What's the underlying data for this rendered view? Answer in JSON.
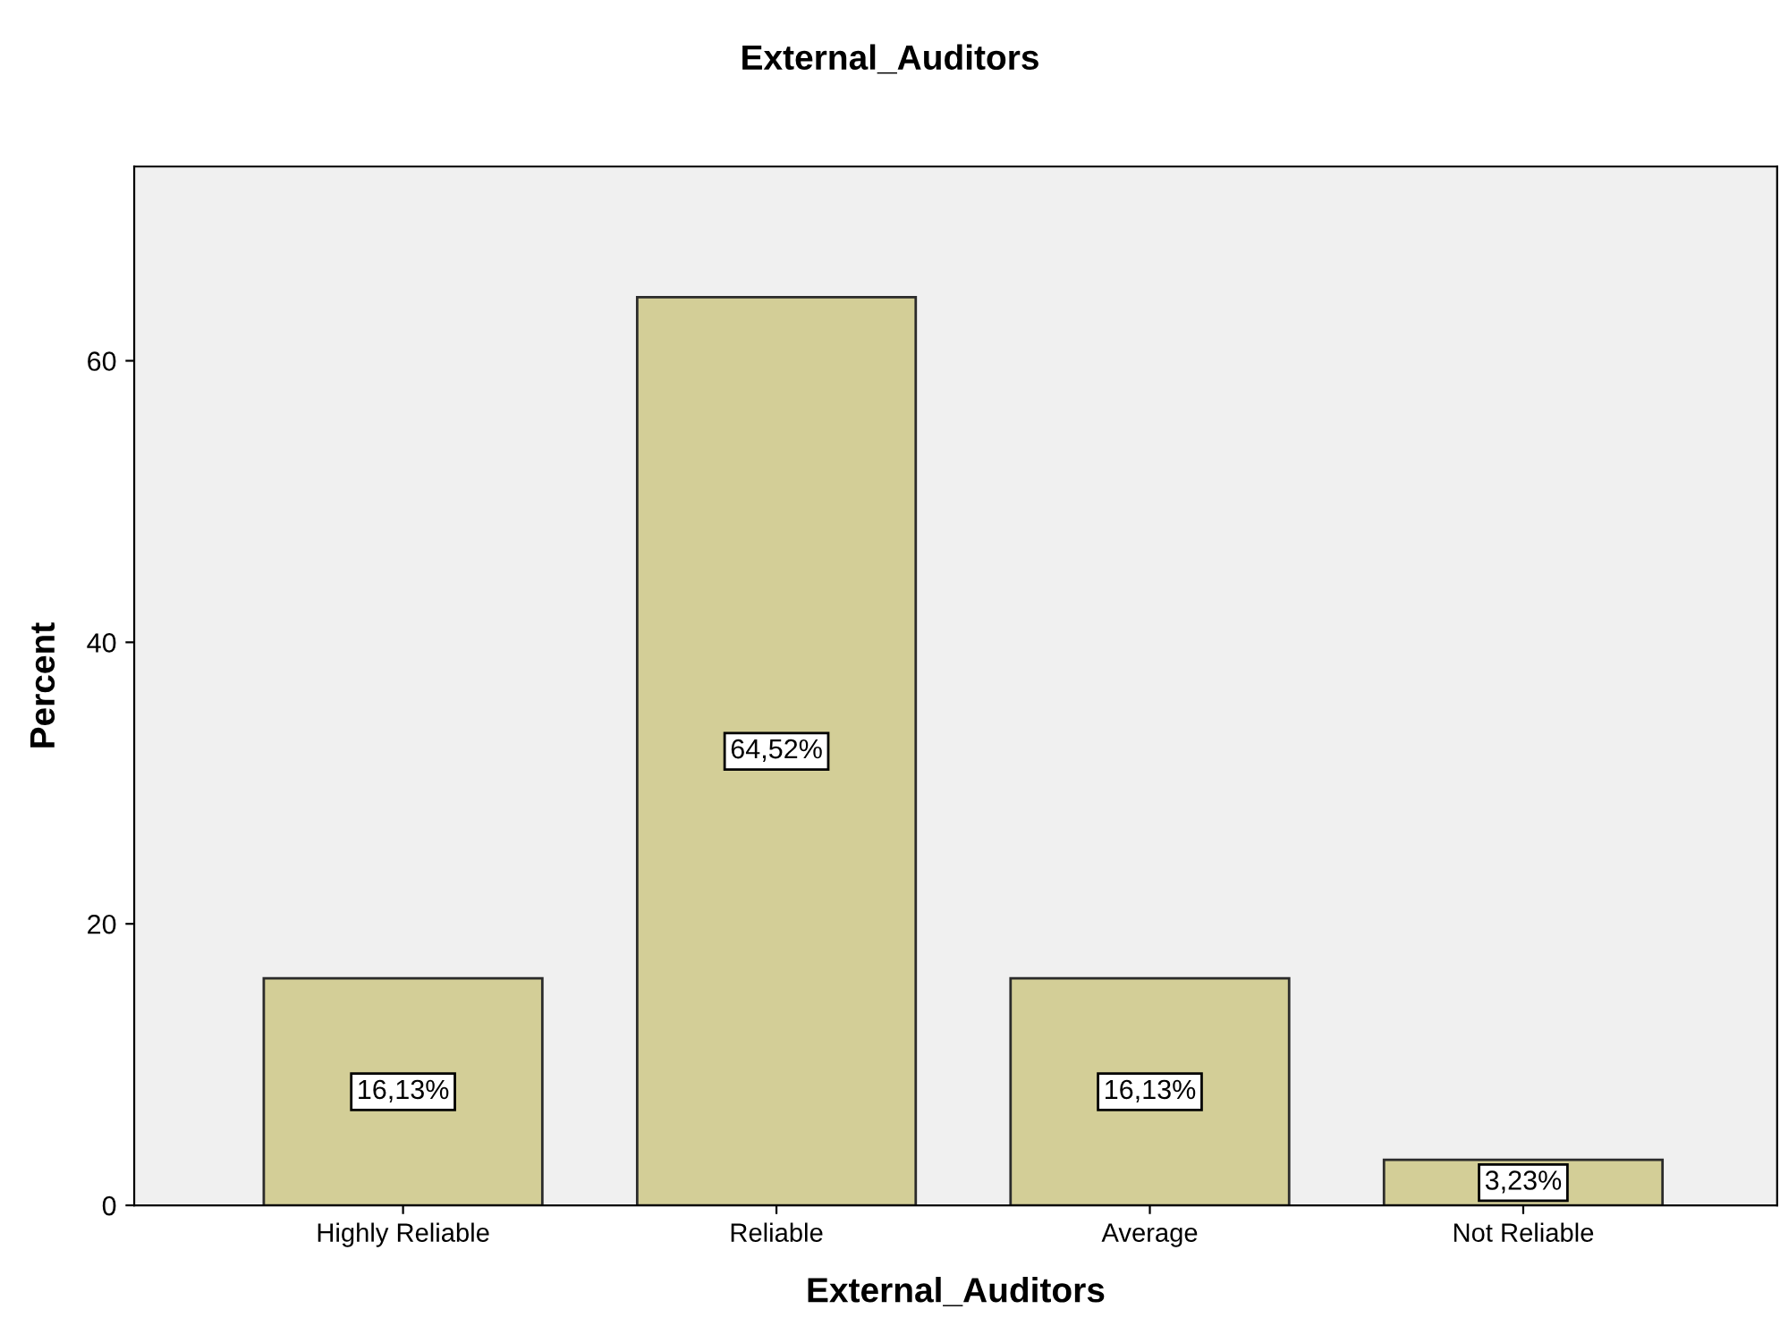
{
  "chart_data": {
    "type": "bar",
    "title": "External_Auditors",
    "xlabel": "External_Auditors",
    "ylabel": "Percent",
    "categories": [
      "Highly Reliable",
      "Reliable",
      "Average",
      "Not Reliable"
    ],
    "values": [
      16.13,
      64.52,
      16.13,
      3.23
    ],
    "value_labels": [
      "16,13%",
      "64,52%",
      "16,13%",
      "3,23%"
    ],
    "color": "#d3ce97",
    "ylim": [
      0,
      73.8
    ],
    "yticks": [
      0,
      20,
      40,
      60
    ],
    "grid": false,
    "legend": false
  }
}
